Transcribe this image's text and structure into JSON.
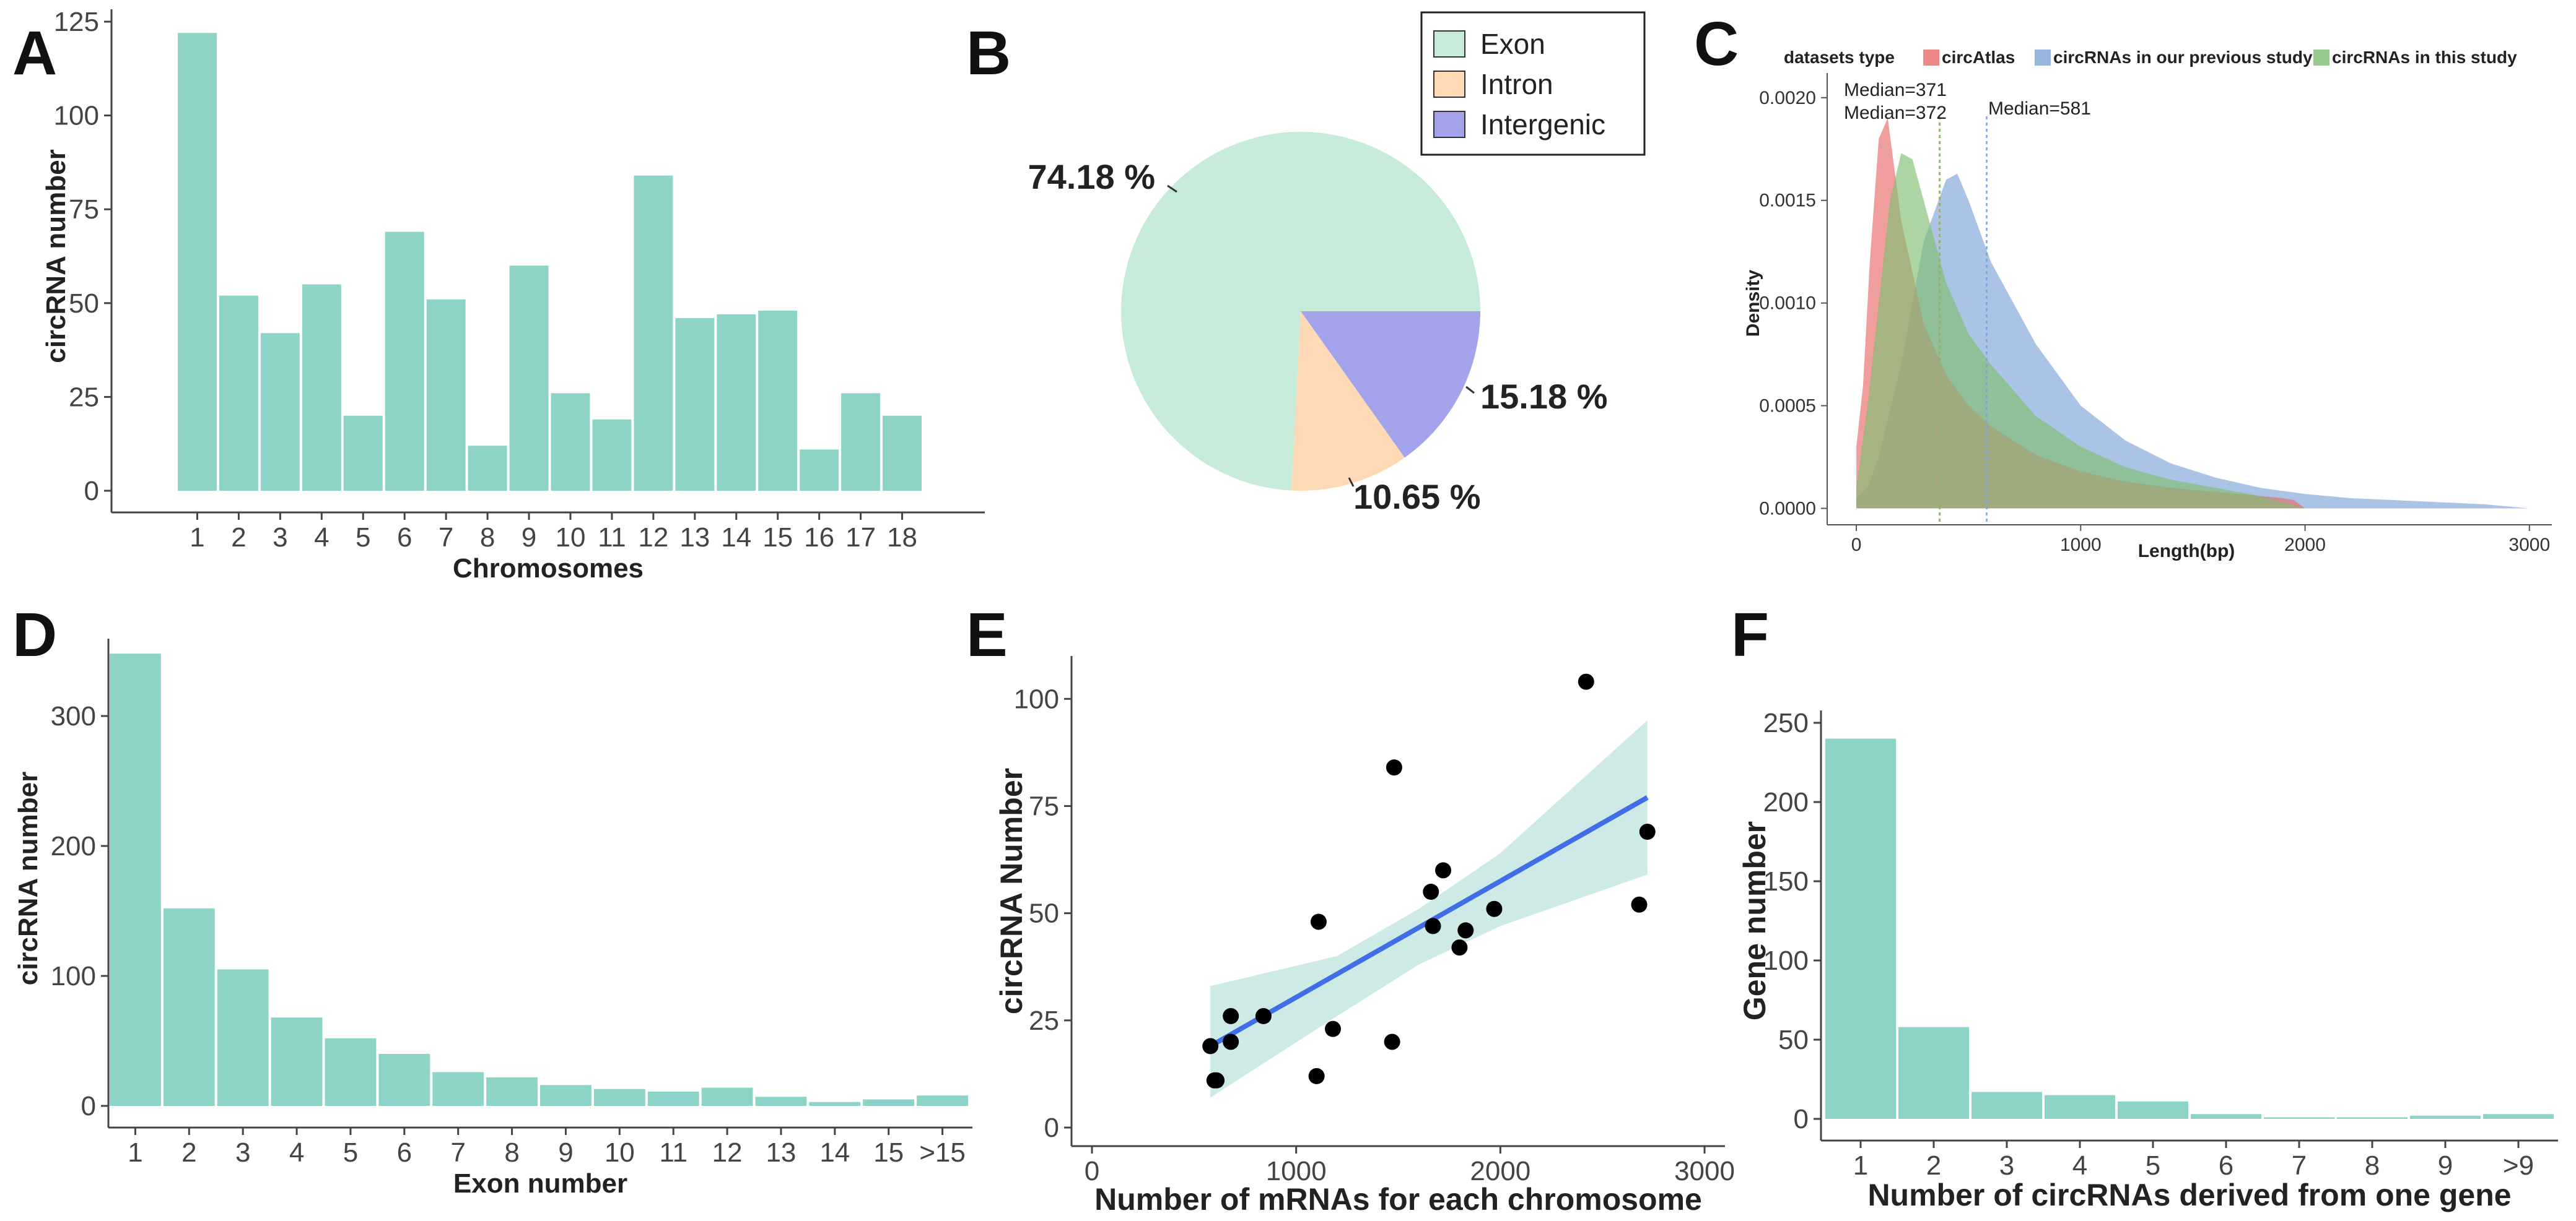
{
  "chart_data": [
    {
      "panel": "A",
      "type": "bar",
      "xlabel": "Chromosomes",
      "ylabel": "circRNA number",
      "categories": [
        "1",
        "2",
        "3",
        "4",
        "5",
        "6",
        "7",
        "8",
        "9",
        "10",
        "11",
        "12",
        "13",
        "14",
        "15",
        "16",
        "17",
        "18"
      ],
      "values": [
        122,
        52,
        42,
        55,
        20,
        69,
        51,
        12,
        60,
        26,
        19,
        84,
        46,
        47,
        48,
        11,
        26,
        20
      ],
      "yticks": [
        0,
        25,
        50,
        75,
        100,
        125
      ],
      "ylim": [
        0,
        125
      ],
      "color": "#8ed3c7"
    },
    {
      "panel": "B",
      "type": "pie",
      "labels": [
        "Exon",
        "Intron",
        "Intergenic"
      ],
      "values": [
        74.18,
        10.65,
        15.18
      ],
      "value_labels": [
        "74.18 %",
        "10.65 %",
        "15.18 %"
      ],
      "colors": [
        "#c6ecd9",
        "#fdd9b5",
        "#a3a3ec"
      ],
      "legend_position": "top-right"
    },
    {
      "panel": "C",
      "type": "area",
      "xlabel": "Length(bp)",
      "ylabel": "Density",
      "legend_title": "datasets type",
      "series": [
        {
          "name": "circAtlas",
          "color": "#e8696a",
          "x": [
            0,
            30,
            60,
            100,
            140,
            200,
            300,
            400,
            500,
            600,
            800,
            1000,
            1200,
            1400,
            1600,
            1800,
            1900,
            1950,
            2000
          ],
          "y": [
            0.0003,
            0.0006,
            0.0012,
            0.0018,
            0.0019,
            0.0014,
            0.0009,
            0.00065,
            0.0005,
            0.0004,
            0.00026,
            0.00018,
            0.00013,
            0.0001,
            8e-05,
            6e-05,
            5e-05,
            4e-05,
            0
          ]
        },
        {
          "name": "circRNAs in our previous study",
          "color": "#7ea3d6",
          "x": [
            0,
            50,
            100,
            200,
            300,
            400,
            450,
            500,
            600,
            800,
            1000,
            1200,
            1400,
            1600,
            1800,
            2000,
            2200,
            2400,
            2600,
            2800,
            3000
          ],
          "y": [
            5e-05,
            0.0001,
            0.00025,
            0.0007,
            0.0013,
            0.0016,
            0.00163,
            0.0015,
            0.0012,
            0.0008,
            0.0005,
            0.00033,
            0.00022,
            0.00015,
            0.0001,
            7e-05,
            5e-05,
            4e-05,
            3e-05,
            2e-05,
            0
          ]
        },
        {
          "name": "circRNAs in this study",
          "color": "#7fbe72",
          "x": [
            0,
            50,
            100,
            150,
            200,
            250,
            300,
            400,
            500,
            600,
            800,
            1000,
            1200,
            1400,
            1600,
            1800,
            2000
          ],
          "y": [
            0.0001,
            0.0005,
            0.001,
            0.0015,
            0.00173,
            0.0017,
            0.0015,
            0.0011,
            0.00085,
            0.0007,
            0.00045,
            0.0003,
            0.0002,
            0.00014,
            0.0001,
            6e-05,
            0
          ]
        }
      ],
      "medians": [
        {
          "label": "Median=371",
          "value": 371
        },
        {
          "label": "Median=372",
          "value": 372
        },
        {
          "label": "Median=581",
          "value": 581
        }
      ],
      "xticks": [
        0,
        1000,
        2000,
        3000
      ],
      "ytick_labels": [
        "0.0000",
        "0.0005",
        "0.0010",
        "0.0015",
        "0.0020"
      ],
      "xlim": [
        -130,
        3100
      ],
      "ylim": [
        -8e-05,
        0.00212
      ]
    },
    {
      "panel": "D",
      "type": "bar",
      "xlabel": "Exon number",
      "ylabel": "circRNA number",
      "categories": [
        "1",
        "2",
        "3",
        "4",
        "5",
        "6",
        "7",
        "8",
        "9",
        "10",
        "11",
        "12",
        "13",
        "14",
        "15",
        ">15"
      ],
      "values": [
        348,
        152,
        105,
        68,
        52,
        40,
        26,
        22,
        16,
        13,
        11,
        14,
        7,
        3,
        5,
        8
      ],
      "yticks": [
        0,
        100,
        200,
        300
      ],
      "ylim": [
        0,
        350
      ],
      "color": "#8ed3c7"
    },
    {
      "panel": "E",
      "type": "scatter",
      "xlabel": "Number of  mRNAs for each chromosome",
      "ylabel": "circRNA Number",
      "points": [
        {
          "x": 2420,
          "y": 104
        },
        {
          "x": 1480,
          "y": 84
        },
        {
          "x": 2720,
          "y": 69
        },
        {
          "x": 1720,
          "y": 60
        },
        {
          "x": 1660,
          "y": 55
        },
        {
          "x": 2680,
          "y": 52
        },
        {
          "x": 1970,
          "y": 51
        },
        {
          "x": 1110,
          "y": 48
        },
        {
          "x": 1670,
          "y": 47
        },
        {
          "x": 1830,
          "y": 46
        },
        {
          "x": 1800,
          "y": 42
        },
        {
          "x": 680,
          "y": 26
        },
        {
          "x": 840,
          "y": 26
        },
        {
          "x": 1180,
          "y": 23
        },
        {
          "x": 680,
          "y": 20
        },
        {
          "x": 1470,
          "y": 20
        },
        {
          "x": 580,
          "y": 19
        },
        {
          "x": 1100,
          "y": 12
        },
        {
          "x": 600,
          "y": 11
        },
        {
          "x": 610,
          "y": 11
        }
      ],
      "fit": {
        "x": [
          580,
          2720
        ],
        "y": [
          19,
          77
        ]
      },
      "ci_band": {
        "x": [
          580,
          1200,
          1600,
          2000,
          2720
        ],
        "upper": [
          33,
          40,
          51,
          64,
          95
        ],
        "lower": [
          7,
          26,
          38,
          47,
          59
        ]
      },
      "xticks": [
        0,
        1000,
        2000,
        3000
      ],
      "yticks": [
        0,
        25,
        50,
        75,
        100
      ],
      "xlim": [
        -100,
        3100
      ],
      "ylim": [
        0,
        110
      ]
    },
    {
      "panel": "F",
      "type": "bar",
      "xlabel": "Number of  circRNAs derived from one gene",
      "ylabel": "Gene number",
      "categories": [
        "1",
        "2",
        "3",
        "4",
        "5",
        "6",
        "7",
        "8",
        "9",
        ">9"
      ],
      "values": [
        240,
        58,
        17,
        15,
        11,
        3,
        1,
        1,
        2,
        3
      ],
      "yticks": [
        0,
        50,
        100,
        150,
        200,
        250
      ],
      "ylim": [
        0,
        250
      ],
      "color": "#8ed3c7"
    }
  ],
  "panel_labels": [
    "A",
    "B",
    "C",
    "D",
    "E",
    "F"
  ]
}
